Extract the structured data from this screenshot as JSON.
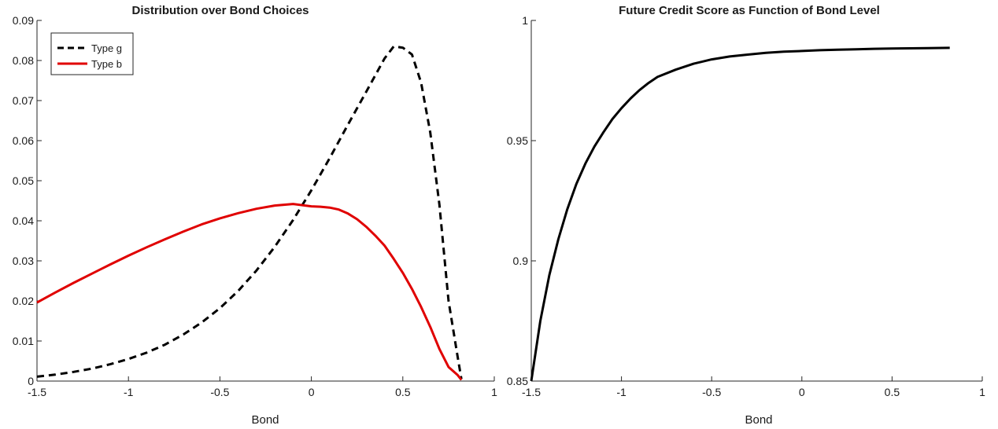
{
  "chart_data": [
    {
      "type": "line",
      "title": "Distribution over Bond Choices",
      "xlabel": "Bond",
      "ylabel": "",
      "xlim": [
        -1.5,
        1
      ],
      "ylim": [
        0,
        0.09
      ],
      "xticks": [
        -1.5,
        -1,
        -0.5,
        0,
        0.5,
        1
      ],
      "xtick_labels": [
        "-1.5",
        "-1",
        "-0.5",
        "0",
        "0.5",
        "1"
      ],
      "yticks": [
        0,
        0.01,
        0.02,
        0.03,
        0.04,
        0.05,
        0.06,
        0.07,
        0.08,
        0.09
      ],
      "ytick_labels": [
        "0",
        "0.01",
        "0.02",
        "0.03",
        "0.04",
        "0.05",
        "0.06",
        "0.07",
        "0.08",
        "0.09"
      ],
      "grid": false,
      "legend_position": "top-left",
      "series": [
        {
          "name": "Type g",
          "color": "#000000",
          "style": "dashed",
          "x": [
            -1.5,
            -1.4,
            -1.3,
            -1.2,
            -1.1,
            -1.0,
            -0.9,
            -0.8,
            -0.7,
            -0.6,
            -0.5,
            -0.4,
            -0.3,
            -0.2,
            -0.1,
            0.0,
            0.1,
            0.2,
            0.3,
            0.4,
            0.45,
            0.5,
            0.55,
            0.6,
            0.65,
            0.7,
            0.75,
            0.8,
            0.82
          ],
          "y": [
            0.0011,
            0.0016,
            0.0023,
            0.0031,
            0.0042,
            0.0055,
            0.0071,
            0.0091,
            0.0116,
            0.0146,
            0.0182,
            0.0225,
            0.0276,
            0.0335,
            0.0402,
            0.0476,
            0.0556,
            0.064,
            0.0722,
            0.0805,
            0.0835,
            0.0832,
            0.0815,
            0.0745,
            0.062,
            0.044,
            0.02,
            0.006,
            0.0005
          ]
        },
        {
          "name": "Type b",
          "color": "#e00000",
          "style": "solid",
          "x": [
            -1.5,
            -1.4,
            -1.3,
            -1.2,
            -1.1,
            -1.0,
            -0.9,
            -0.8,
            -0.7,
            -0.6,
            -0.5,
            -0.4,
            -0.3,
            -0.2,
            -0.1,
            0.0,
            0.05,
            0.1,
            0.15,
            0.2,
            0.25,
            0.3,
            0.35,
            0.4,
            0.45,
            0.5,
            0.55,
            0.6,
            0.65,
            0.7,
            0.75,
            0.8,
            0.82
          ],
          "y": [
            0.0196,
            0.0221,
            0.0245,
            0.0268,
            0.0291,
            0.0313,
            0.0334,
            0.0354,
            0.0373,
            0.0391,
            0.0406,
            0.0419,
            0.043,
            0.0438,
            0.0442,
            0.0436,
            0.0435,
            0.0433,
            0.0428,
            0.0418,
            0.0404,
            0.0385,
            0.0363,
            0.0338,
            0.0305,
            0.027,
            0.023,
            0.0185,
            0.0135,
            0.008,
            0.0035,
            0.0015,
            0.0003
          ]
        }
      ]
    },
    {
      "type": "line",
      "title": "Future Credit Score as Function of Bond Level",
      "xlabel": "Bond",
      "ylabel": "",
      "xlim": [
        -1.5,
        1
      ],
      "ylim": [
        0.85,
        1
      ],
      "xticks": [
        -1.5,
        -1,
        -0.5,
        0,
        0.5,
        1
      ],
      "xtick_labels": [
        "-1.5",
        "-1",
        "-0.5",
        "0",
        "0.5",
        "1"
      ],
      "yticks": [
        0.85,
        0.9,
        0.95,
        1
      ],
      "ytick_labels": [
        "0.85",
        "0.9",
        "0.95",
        "1"
      ],
      "grid": false,
      "series": [
        {
          "color": "#000000",
          "style": "solid",
          "x": [
            -1.5,
            -1.45,
            -1.4,
            -1.35,
            -1.3,
            -1.25,
            -1.2,
            -1.15,
            -1.1,
            -1.05,
            -1.0,
            -0.95,
            -0.9,
            -0.85,
            -0.8,
            -0.7,
            -0.6,
            -0.5,
            -0.4,
            -0.3,
            -0.2,
            -0.1,
            0.0,
            0.1,
            0.2,
            0.3,
            0.4,
            0.5,
            0.6,
            0.7,
            0.82
          ],
          "y": [
            0.85,
            0.875,
            0.894,
            0.909,
            0.9215,
            0.932,
            0.9405,
            0.9475,
            0.9535,
            0.959,
            0.9635,
            0.9675,
            0.971,
            0.974,
            0.9765,
            0.9795,
            0.982,
            0.9838,
            0.985,
            0.9858,
            0.9865,
            0.987,
            0.9873,
            0.9876,
            0.9878,
            0.988,
            0.9882,
            0.9883,
            0.9884,
            0.9885,
            0.9886
          ]
        }
      ]
    }
  ]
}
